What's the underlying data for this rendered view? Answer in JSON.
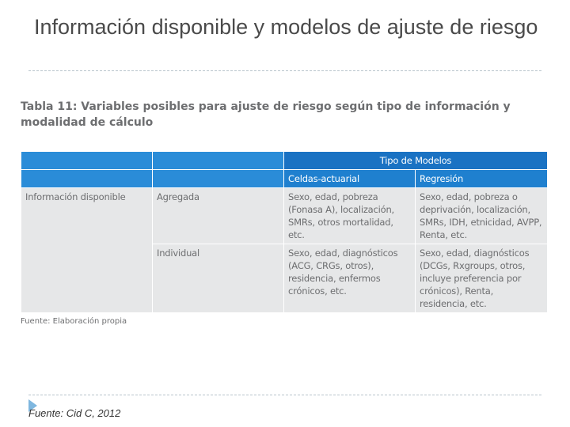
{
  "slide": {
    "title": "Información disponible y modelos de ajuste de riesgo",
    "footer_source": "Fuente: Cid C, 2012"
  },
  "table": {
    "caption": "Tabla 11: Variables posibles para ajuste de riesgo según tipo de información y modalidad de cálculo",
    "group_header": "Tipo de Modelos",
    "sub_headers": [
      "Celdas-actuarial",
      "Regresión"
    ],
    "rows": [
      {
        "col1": "Información disponible",
        "col2": "Agregada",
        "col3": "Sexo, edad, pobreza (Fonasa A), localización, SMRs, otros mortalidad, etc.",
        "col4": "Sexo, edad, pobreza o deprivación, localización, SMRs, IDH, etnicidad, AVPP, Renta, etc."
      },
      {
        "col1": "",
        "col2": "Individual",
        "col3": "Sexo, edad, diagnósticos (ACG, CRGs, otros), residencia, enfermos crónicos, etc.",
        "col4": "Sexo, edad, diagnósticos (DCGs, Rxgroups, otros, incluye preferencia por crónicos), Renta, residencia, etc."
      }
    ],
    "source": "Fuente: Elaboración propia"
  },
  "colors": {
    "header_dark": "#1a72c3",
    "header_light": "#2a8cd8",
    "cell_bg": "#e6e7e8",
    "text_gray": "#6d6e70",
    "bullet": "#7fb7df"
  },
  "icons": [
    "bullet-arrow-icon"
  ]
}
